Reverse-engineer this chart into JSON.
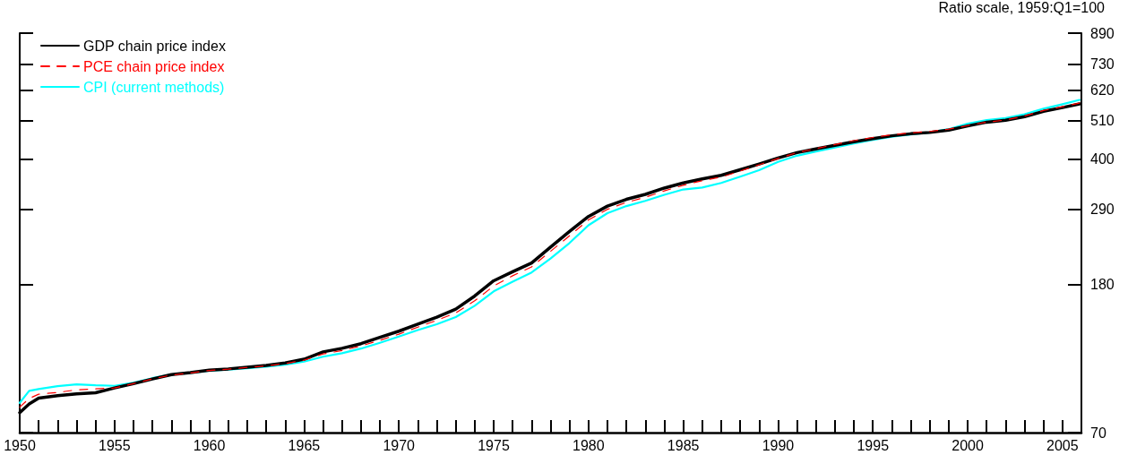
{
  "chart_data": {
    "type": "line",
    "ylabel": "Ratio scale, 1959:Q1=100",
    "log": "y",
    "grid": false,
    "legend": "top left",
    "marker": "none",
    "x": [
      1950,
      1950.5,
      1951,
      1952,
      1953,
      1954,
      1955,
      1956,
      1957,
      1958,
      1959,
      1960,
      1961,
      1962,
      1963,
      1964,
      1965,
      1966,
      1967,
      1968,
      1969,
      1970,
      1971,
      1972,
      1973,
      1974,
      1975,
      1976,
      1977,
      1978,
      1979,
      1980,
      1981,
      1982,
      1983,
      1984,
      1985,
      1986,
      1987,
      1988,
      1989,
      1990,
      1991,
      1992,
      1993,
      1994,
      1995,
      1996,
      1997,
      1998,
      1999,
      2000,
      2001,
      2002,
      2003,
      2004,
      2005,
      2005.9
    ],
    "series": [
      {
        "name": "GDP chain price index",
        "color": "#000000",
        "line_style": "solid",
        "values": [
          79.5,
          84,
          87.2,
          88.6,
          89.6,
          90.2,
          93,
          95.6,
          98.5,
          101.3,
          102.5,
          104.2,
          105,
          106.2,
          107.4,
          109.1,
          111.7,
          117,
          119.7,
          123.3,
          128.4,
          133.5,
          139.7,
          146,
          153.6,
          167,
          184,
          195,
          206,
          228,
          252,
          277,
          296,
          309,
          319,
          332,
          343,
          352,
          360,
          373,
          387,
          402,
          416,
          426,
          436,
          446,
          455,
          463,
          469,
          473,
          480,
          493,
          505,
          511,
          523,
          541,
          554,
          567
        ]
      },
      {
        "name": "PCE chain price index",
        "color": "#ff0000",
        "line_style": "dashed",
        "values": [
          82.3,
          87,
          89.4,
          90.4,
          91.9,
          92.5,
          93,
          95.6,
          98.5,
          101,
          102.3,
          104,
          104.8,
          106,
          107,
          108.6,
          111,
          115.5,
          118,
          121.5,
          126,
          131,
          137,
          143,
          150,
          162,
          178,
          190,
          201,
          222,
          245,
          271,
          290,
          303,
          313,
          326,
          338,
          348,
          356,
          370,
          385,
          401,
          416,
          427,
          438,
          449,
          458,
          466,
          472,
          476,
          483,
          494,
          505,
          512,
          525,
          544,
          557,
          570
        ]
      },
      {
        "name": "CPI (current methods)",
        "color": "#00ffff",
        "line_style": "solid",
        "values": [
          84.6,
          91.3,
          92.4,
          94.1,
          95.2,
          94.6,
          94.3,
          96.1,
          99,
          101.3,
          102.3,
          103.8,
          104.5,
          105.5,
          106.5,
          107.8,
          110,
          113.5,
          116,
          119.5,
          124,
          129,
          134.5,
          139.5,
          146,
          157,
          172,
          183,
          194,
          212,
          234,
          262,
          283,
          296,
          306,
          318,
          329,
          333,
          343,
          357,
          372,
          392,
          408,
          419,
          430,
          441,
          451,
          460,
          467,
          473,
          483,
          500,
          512,
          518,
          531,
          550,
          566,
          582
        ]
      }
    ],
    "xlim": [
      1950,
      2006
    ],
    "xticks": [
      1950,
      {
        "value": 1951,
        "label": null
      },
      {
        "value": 1952,
        "label": null
      },
      {
        "value": 1953,
        "label": null
      },
      {
        "value": 1954,
        "label": null
      },
      1955,
      {
        "value": 1956,
        "label": null
      },
      {
        "value": 1957,
        "label": null
      },
      {
        "value": 1958,
        "label": null
      },
      {
        "value": 1959,
        "label": null
      },
      1960,
      {
        "value": 1961,
        "label": null
      },
      {
        "value": 1962,
        "label": null
      },
      {
        "value": 1963,
        "label": null
      },
      {
        "value": 1964,
        "label": null
      },
      1965,
      {
        "value": 1966,
        "label": null
      },
      {
        "value": 1967,
        "label": null
      },
      {
        "value": 1968,
        "label": null
      },
      {
        "value": 1969,
        "label": null
      },
      1970,
      {
        "value": 1971,
        "label": null
      },
      {
        "value": 1972,
        "label": null
      },
      {
        "value": 1973,
        "label": null
      },
      {
        "value": 1974,
        "label": null
      },
      1975,
      {
        "value": 1976,
        "label": null
      },
      {
        "value": 1977,
        "label": null
      },
      {
        "value": 1978,
        "label": null
      },
      {
        "value": 1979,
        "label": null
      },
      1980,
      {
        "value": 1981,
        "label": null
      },
      {
        "value": 1982,
        "label": null
      },
      {
        "value": 1983,
        "label": null
      },
      {
        "value": 1984,
        "label": null
      },
      1985,
      {
        "value": 1986,
        "label": null
      },
      {
        "value": 1987,
        "label": null
      },
      {
        "value": 1988,
        "label": null
      },
      {
        "value": 1989,
        "label": null
      },
      1990,
      {
        "value": 1991,
        "label": null
      },
      {
        "value": 1992,
        "label": null
      },
      {
        "value": 1993,
        "label": null
      },
      {
        "value": 1994,
        "label": null
      },
      1995,
      {
        "value": 1996,
        "label": null
      },
      {
        "value": 1997,
        "label": null
      },
      {
        "value": 1998,
        "label": null
      },
      {
        "value": 1999,
        "label": null
      },
      2000,
      {
        "value": 2001,
        "label": null
      },
      {
        "value": 2002,
        "label": null
      },
      {
        "value": 2003,
        "label": null
      },
      {
        "value": 2004,
        "label": null
      },
      2005
    ],
    "ylim": [
      70,
      890
    ],
    "yticks": [
      70,
      180,
      290,
      400,
      510,
      620,
      730,
      890
    ]
  }
}
